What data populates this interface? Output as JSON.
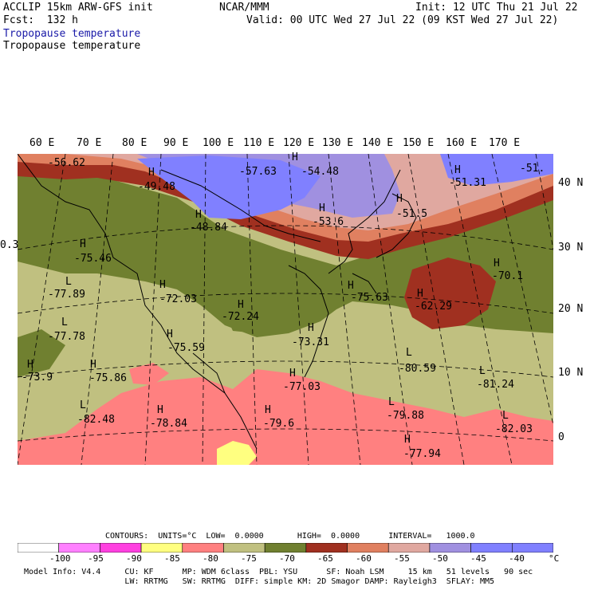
{
  "header": {
    "left_line1": "ACCLIP 15km ARW-GFS init",
    "left_line2": "Fcst:  132 h",
    "center": "NCAR/MMM",
    "init": "Init: 12 UTC Thu 21 Jul 22",
    "valid": "Valid: 00 UTC Wed 27 Jul 22 (09 KST Wed 27 Jul 22)",
    "field_title_1": "Tropopause temperature",
    "field_title_2": "Tropopause temperature"
  },
  "longitude_labels": [
    "60 E",
    "70 E",
    "80 E",
    "90 E",
    "100 E",
    "110 E",
    "120 E",
    "130 E",
    "140 E",
    "150 E",
    "160 E",
    "170 E"
  ],
  "latitude_labels": [
    "40 N",
    "30 N",
    "20 N",
    "10 N",
    "0"
  ],
  "extrema": [
    {
      "type": "value",
      "text": "-56.62"
    },
    {
      "type": "value",
      "text": "-57.63"
    },
    {
      "type": "value",
      "text": "-54.48"
    },
    {
      "type": "value",
      "text": "-49.48"
    },
    {
      "type": "value",
      "text": "-48.84"
    },
    {
      "type": "value",
      "text": "-53.6"
    },
    {
      "type": "value",
      "text": "-51.5"
    },
    {
      "type": "value",
      "text": "-51.31"
    },
    {
      "type": "value",
      "text": "-51."
    },
    {
      "type": "value",
      "text": "-75.46"
    },
    {
      "type": "value",
      "text": "-77.89"
    },
    {
      "type": "value",
      "text": "-72.03"
    },
    {
      "type": "value",
      "text": "-72.24"
    },
    {
      "type": "value",
      "text": "-75.63"
    },
    {
      "type": "value",
      "text": "-62.29"
    },
    {
      "type": "value",
      "text": "-70.1"
    },
    {
      "type": "value",
      "text": "-77.78"
    },
    {
      "type": "value",
      "text": "-75.59"
    },
    {
      "type": "value",
      "text": "-73.31"
    },
    {
      "type": "value",
      "text": "-80.59"
    },
    {
      "type": "value",
      "text": "-73.9"
    },
    {
      "type": "value",
      "text": "-75.86"
    },
    {
      "type": "value",
      "text": "-77.03"
    },
    {
      "type": "value",
      "text": "-81.24"
    },
    {
      "type": "value",
      "text": "-82.48"
    },
    {
      "type": "value",
      "text": "-78.84"
    },
    {
      "type": "value",
      "text": "-79.6"
    },
    {
      "type": "value",
      "text": "-79.88"
    },
    {
      "type": "value",
      "text": "-82.03"
    },
    {
      "type": "value",
      "text": "-77.94"
    },
    {
      "type": "value",
      "text": "0.3"
    }
  ],
  "markers": {
    "high": "H",
    "low": "L"
  },
  "contours_line": "CONTOURS:  UNITS=°C  LOW=  0.0000       HIGH=  0.0000      INTERVAL=   1000.0",
  "colorbar": {
    "ticks": [
      "-100",
      "-95",
      "-90",
      "-85",
      "-80",
      "-75",
      "-70",
      "-65",
      "-60",
      "-55",
      "-50",
      "-45",
      "-40"
    ],
    "unit": "°C",
    "colors": [
      "#ffffff",
      "#ff80ff",
      "#ff40e0",
      "#ffff80",
      "#ff8080",
      "#c0c080",
      "#708030",
      "#a03020",
      "#e08060",
      "#e0a8a0",
      "#a090e0",
      "#8080ff",
      "#8080ff"
    ]
  },
  "footer": {
    "line1": "Model Info: V4.4     CU: KF      MP: WDM 6class  PBL: YSU      SF: Noah LSM     15 km   51 levels   90 sec",
    "line2": "                     LW: RRTMG   SW: RRTMG  DIFF: simple KM: 2D Smagor DAMP: Rayleigh3  SFLAY: MM5"
  }
}
